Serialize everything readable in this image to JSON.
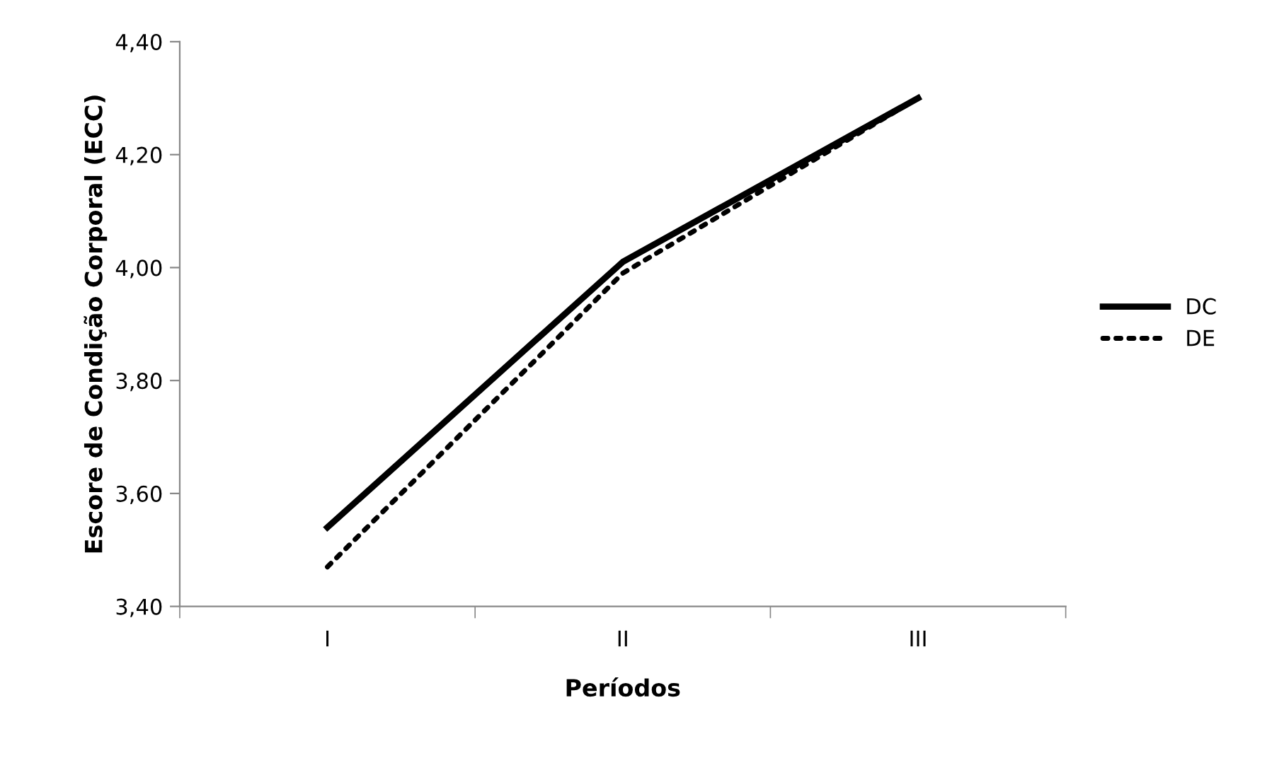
{
  "chart_data": {
    "type": "line",
    "xlabel": "Períodos",
    "ylabel": "Escore de Condição Corporal (ECC)",
    "categories": [
      "I",
      "II",
      "III"
    ],
    "series": [
      {
        "name": "DC",
        "color": "#000000",
        "line_style": "solid",
        "values": [
          3.54,
          4.01,
          4.3
        ]
      },
      {
        "name": "DE",
        "color": "#000000",
        "line_style": "dotted",
        "values": [
          3.47,
          3.99,
          4.3
        ]
      }
    ],
    "ylim": [
      3.4,
      4.4
    ],
    "yticks": [
      {
        "value": 3.4,
        "label": "3,40"
      },
      {
        "value": 3.6,
        "label": "3,60"
      },
      {
        "value": 3.8,
        "label": "3,80"
      },
      {
        "value": 4.0,
        "label": "4,00"
      },
      {
        "value": 4.2,
        "label": "4,20"
      },
      {
        "value": 4.4,
        "label": "4,40"
      }
    ],
    "grid": false,
    "legend": "right",
    "marker": "none"
  }
}
